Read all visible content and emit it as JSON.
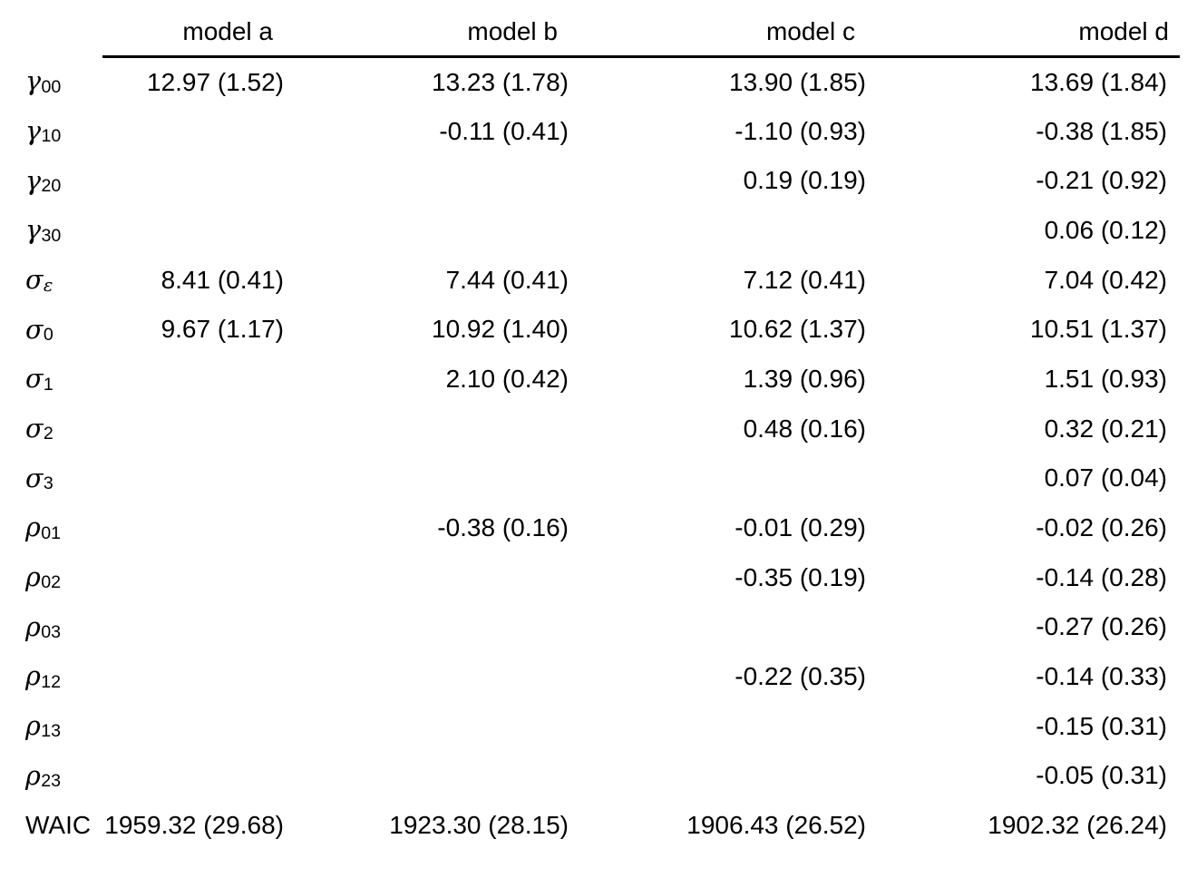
{
  "colors": {
    "background": "#ffffff",
    "text": "#000000",
    "rule": "#000000"
  },
  "table": {
    "header": {
      "param_col": "",
      "models": [
        "model a",
        "model b",
        "model c",
        "model d"
      ]
    },
    "rows": [
      {
        "param": "gamma-00",
        "symbol": "γ",
        "subscript": "00",
        "values": [
          "12.97 (1.52)",
          "13.23 (1.78)",
          "13.90 (1.85)",
          "13.69 (1.84)"
        ]
      },
      {
        "param": "gamma-10",
        "symbol": "γ",
        "subscript": "10",
        "values": [
          "",
          "-0.11 (0.41)",
          "-1.10 (0.93)",
          "-0.38 (1.85)"
        ]
      },
      {
        "param": "gamma-20",
        "symbol": "γ",
        "subscript": "20",
        "values": [
          "",
          "",
          "0.19 (0.19)",
          "-0.21 (0.92)"
        ]
      },
      {
        "param": "gamma-30",
        "symbol": "γ",
        "subscript": "30",
        "values": [
          "",
          "",
          "",
          "0.06 (0.12)"
        ]
      },
      {
        "param": "sigma-eps",
        "symbol": "σ",
        "subscript": "ε",
        "values": [
          "8.41 (0.41)",
          "7.44 (0.41)",
          "7.12 (0.41)",
          "7.04 (0.42)"
        ]
      },
      {
        "param": "sigma-0",
        "symbol": "σ",
        "subscript": "0",
        "values": [
          "9.67 (1.17)",
          "10.92 (1.40)",
          "10.62 (1.37)",
          "10.51 (1.37)"
        ]
      },
      {
        "param": "sigma-1",
        "symbol": "σ",
        "subscript": "1",
        "values": [
          "",
          "2.10 (0.42)",
          "1.39 (0.96)",
          "1.51 (0.93)"
        ]
      },
      {
        "param": "sigma-2",
        "symbol": "σ",
        "subscript": "2",
        "values": [
          "",
          "",
          "0.48 (0.16)",
          "0.32 (0.21)"
        ]
      },
      {
        "param": "sigma-3",
        "symbol": "σ",
        "subscript": "3",
        "values": [
          "",
          "",
          "",
          "0.07 (0.04)"
        ]
      },
      {
        "param": "rho-01",
        "symbol": "ρ",
        "subscript": "01",
        "values": [
          "",
          "-0.38 (0.16)",
          "-0.01 (0.29)",
          "-0.02 (0.26)"
        ]
      },
      {
        "param": "rho-02",
        "symbol": "ρ",
        "subscript": "02",
        "values": [
          "",
          "",
          "-0.35 (0.19)",
          "-0.14 (0.28)"
        ]
      },
      {
        "param": "rho-03",
        "symbol": "ρ",
        "subscript": "03",
        "values": [
          "",
          "",
          "",
          "-0.27 (0.26)"
        ]
      },
      {
        "param": "rho-12",
        "symbol": "ρ",
        "subscript": "12",
        "values": [
          "",
          "",
          "-0.22 (0.35)",
          "-0.14 (0.33)"
        ]
      },
      {
        "param": "rho-13",
        "symbol": "ρ",
        "subscript": "13",
        "values": [
          "",
          "",
          "",
          "-0.15 (0.31)"
        ]
      },
      {
        "param": "rho-23",
        "symbol": "ρ",
        "subscript": "23",
        "values": [
          "",
          "",
          "",
          "-0.05 (0.31)"
        ]
      },
      {
        "param": "waic",
        "symbol": "WAIC",
        "subscript": "",
        "values": [
          "1959.32 (29.68)",
          "1923.30 (28.15)",
          "1906.43 (26.52)",
          "1902.32 (26.24)"
        ]
      }
    ]
  }
}
